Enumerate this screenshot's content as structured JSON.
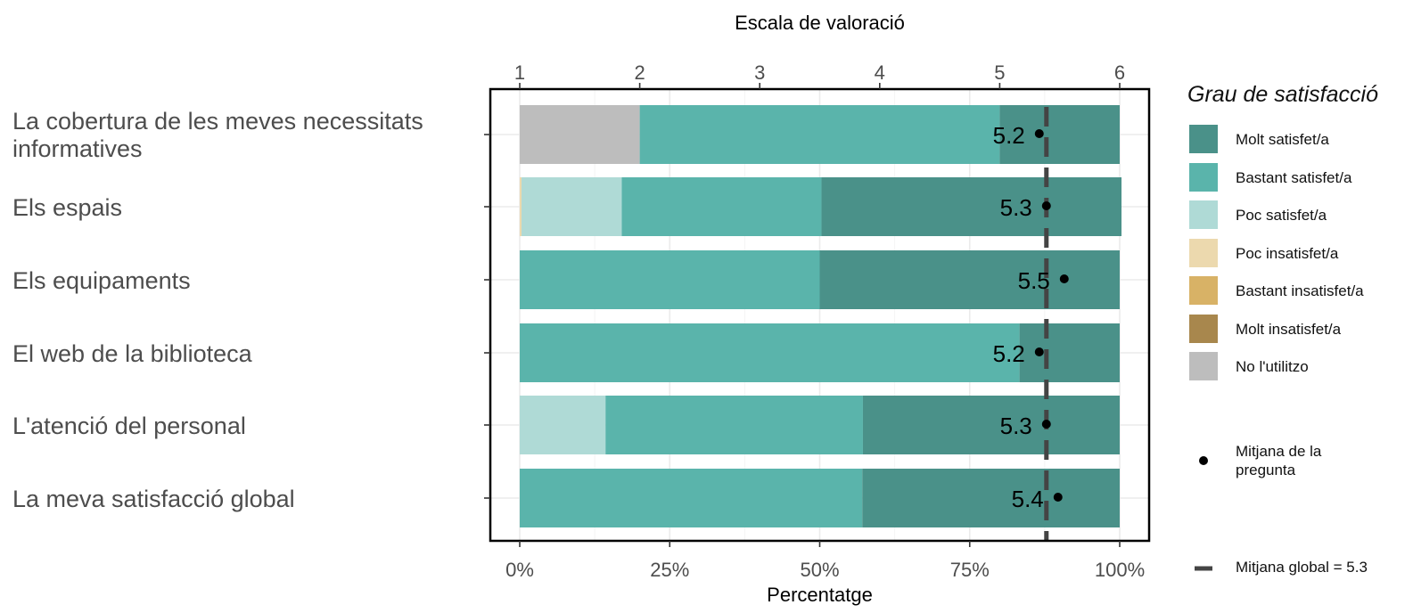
{
  "chart_data": {
    "type": "bar",
    "orientation": "horizontal",
    "stacked": true,
    "top_axis_title": "Escala de valoració",
    "top_axis_ticks": [
      "1",
      "2",
      "3",
      "4",
      "5",
      "6"
    ],
    "top_axis_range": [
      1,
      6
    ],
    "xlabel": "Percentatge",
    "x_ticks": [
      "0%",
      "25%",
      "50%",
      "75%",
      "100%"
    ],
    "xlim": [
      0,
      100
    ],
    "categories": [
      "La cobertura de les meves necessitats informatives",
      "Els espais",
      "Els equipaments",
      "El web de la biblioteca",
      "L'atenció del personal",
      "La meva satisfacció global"
    ],
    "series": [
      {
        "name": "No l'utilitzo",
        "color": "#bdbdbd",
        "values": [
          20,
          0,
          0,
          0,
          0,
          0
        ]
      },
      {
        "name": "Molt insatisfet/a",
        "color": "#a8874d",
        "values": [
          0,
          0,
          0,
          0,
          0,
          0
        ]
      },
      {
        "name": "Bastant insatisfet/a",
        "color": "#d8b266",
        "values": [
          0,
          0,
          0,
          0,
          0,
          0
        ]
      },
      {
        "name": "Poc insatisfet/a",
        "color": "#ecd9ae",
        "values": [
          0,
          0.3,
          0,
          0,
          0,
          0
        ]
      },
      {
        "name": "Poc satisfet/a",
        "color": "#afdad6",
        "values": [
          0,
          16.7,
          0,
          0,
          14.3,
          0
        ]
      },
      {
        "name": "Bastant satisfet/a",
        "color": "#5ab4ab",
        "values": [
          60,
          33.3,
          50,
          83.3,
          42.9,
          57.1
        ]
      },
      {
        "name": "Molt satisfet/a",
        "color": "#4a9189",
        "values": [
          20,
          50,
          50,
          16.7,
          42.8,
          42.9
        ]
      }
    ],
    "means": [
      5.2,
      5.3,
      5.5,
      5.2,
      5.3,
      5.4
    ],
    "mean_labels": [
      "5.2",
      "5.3",
      "5.5",
      "5.2",
      "5.3",
      "5.4"
    ],
    "global_mean": 5.3,
    "legend_title": "Grau de satisfacció",
    "legend_order": [
      "Molt satisfet/a",
      "Bastant satisfet/a",
      "Poc satisfet/a",
      "Poc insatisfet/a",
      "Bastant insatisfet/a",
      "Molt insatisfet/a",
      "No l'utilitzo"
    ],
    "legend_mean_label": "Mitjana de la pregunta",
    "legend_global_label": "Mitjana global =  5.3",
    "legend_position": "right",
    "grid": true
  }
}
